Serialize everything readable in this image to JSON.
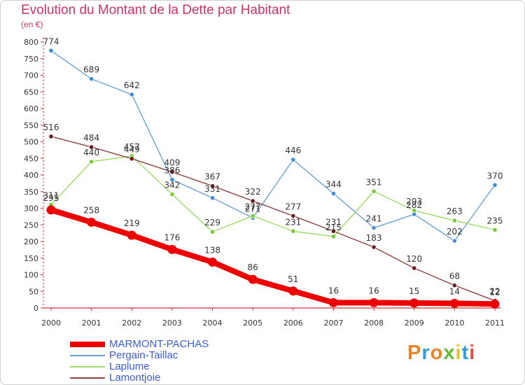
{
  "title": "Evolution du Montant de la Dette par Habitant",
  "subtitle": "(en €)",
  "logo_text": "Proxiti",
  "chart_data": {
    "type": "line",
    "title": "Evolution du Montant de la Dette par Habitant",
    "ylabel": "(en €)",
    "x": [
      "2000",
      "2001",
      "2002",
      "2003",
      "2004",
      "2005",
      "2006",
      "2007",
      "2008",
      "2009",
      "2010",
      "2011"
    ],
    "ylim": [
      0,
      800
    ],
    "yticks": [
      0,
      50,
      100,
      150,
      200,
      250,
      300,
      350,
      400,
      450,
      500,
      550,
      600,
      650,
      700,
      750,
      800
    ],
    "grid": false,
    "legend_position": "bottom-left",
    "series": [
      {
        "name": "MARMONT-PACHAS",
        "color": "#ee0000",
        "marker_color": "#ee0000",
        "thick": true,
        "values": [
          295,
          258,
          219,
          176,
          138,
          86,
          51,
          16,
          16,
          15,
          14,
          12
        ]
      },
      {
        "name": "Pergain-Taillac",
        "color": "#6aa3d8",
        "marker_color": "#3b8fd6",
        "thick": false,
        "values": [
          774,
          689,
          642,
          386,
          331,
          271,
          446,
          344,
          241,
          282,
          202,
          370
        ]
      },
      {
        "name": "Laplume",
        "color": "#99dd66",
        "marker_color": "#77cc33",
        "thick": false,
        "values": [
          311,
          440,
          457,
          342,
          229,
          277,
          231,
          215,
          351,
          293,
          263,
          235
        ]
      },
      {
        "name": "Lamontjoie",
        "color": "#8b4545",
        "marker_color": "#6b1b1b",
        "thick": false,
        "values": [
          516,
          484,
          449,
          409,
          367,
          322,
          277,
          231,
          183,
          120,
          68,
          22
        ]
      }
    ]
  },
  "logo_colors": [
    "#e8842a",
    "#3a9bd5",
    "#e8842a",
    "#66bb33",
    "#e8c42a",
    "#3a9bd5",
    "#e84a3a"
  ]
}
